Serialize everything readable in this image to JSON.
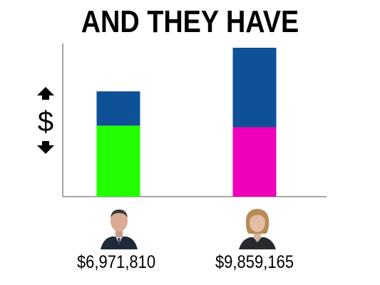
{
  "title": "AND THEY HAVE",
  "axis_symbol": "$",
  "icons": [
    "up-arrow-icon",
    "down-arrow-icon",
    "dollar-icon"
  ],
  "colors": {
    "top_segment": "#0e5196",
    "candidate_1_bottom": "#22ff00",
    "candidate_2_bottom": "#ee00bb",
    "axis": "#888888"
  },
  "chart_data": {
    "type": "bar",
    "stacked": true,
    "categories": [
      "$6,971,810",
      "$9,859,165"
    ],
    "values": [
      6971810,
      9859165
    ],
    "segments": [
      {
        "bottom": 4700000,
        "top": 2271810
      },
      {
        "bottom": 4600000,
        "top": 5259165
      }
    ],
    "ylim": [
      0,
      9859165
    ],
    "xlabel": "",
    "ylabel": "$",
    "grid": false,
    "legend": "none"
  }
}
